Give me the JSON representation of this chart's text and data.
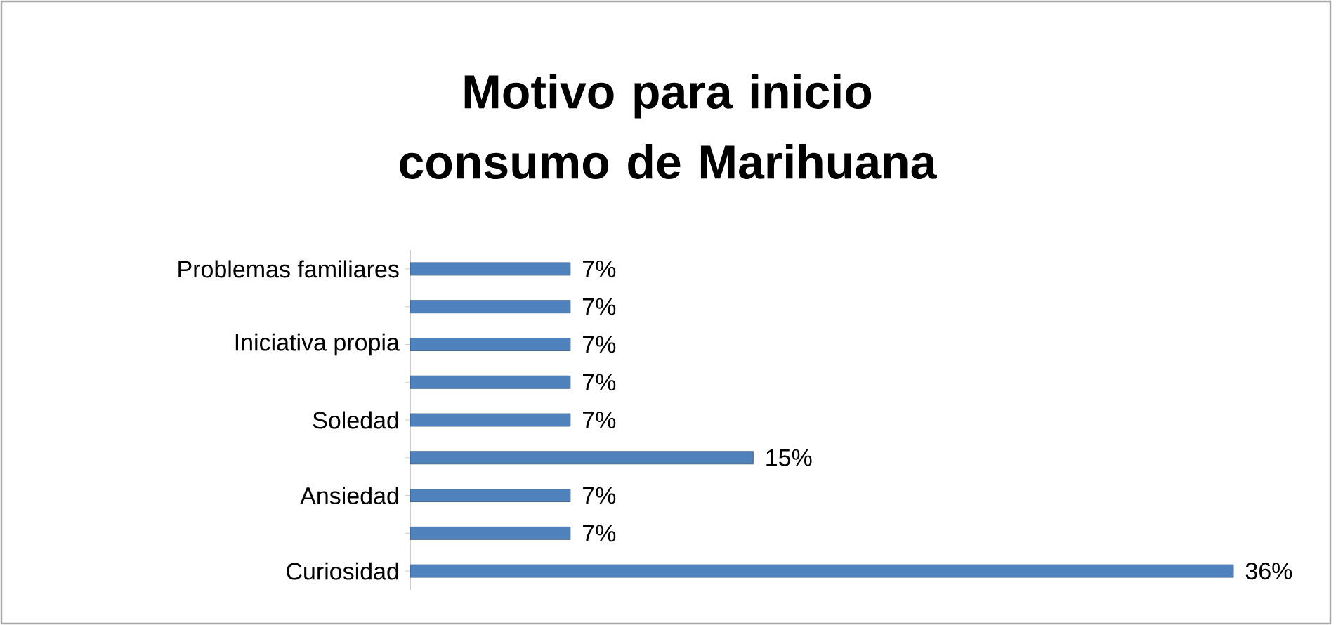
{
  "chart_data": {
    "type": "bar",
    "orientation": "horizontal",
    "title": "Motivo para inicio  consumo de Marihuana",
    "categories": [
      "Problemas familiares",
      null,
      "Iniciativa propia",
      null,
      "Soledad",
      null,
      "Ansiedad",
      null,
      "Curiosidad"
    ],
    "values": [
      7,
      7,
      7,
      7,
      7,
      15,
      7,
      7,
      36
    ],
    "value_labels": [
      "7%",
      "7%",
      "7%",
      "7%",
      "7%",
      "15%",
      "7%",
      "7%",
      "36%"
    ],
    "color": "#4f81bd"
  }
}
